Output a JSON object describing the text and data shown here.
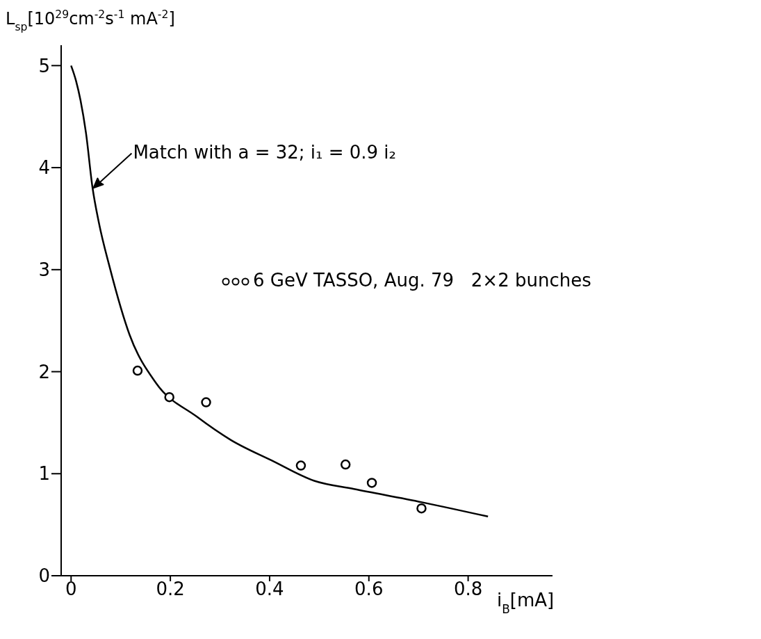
{
  "chart_data": {
    "type": "scatter",
    "xlabel": "i$_{B}$[mA]",
    "ylabel": "L$_{sp}$[10$^{29}$cm$^{-2}$s$^{-1}$ mA$^{-2}$]",
    "xlim": [
      -0.02,
      0.97
    ],
    "xticks": [
      0,
      0.2,
      0.4,
      0.6,
      0.8
    ],
    "ylim": [
      0,
      5.2
    ],
    "yticks": [
      0,
      1,
      2,
      3,
      4,
      5
    ],
    "legend": "right",
    "annotations": [
      {
        "text": "Match with a = 32; i₁ = 0.9 i₂",
        "x": 0.045,
        "y": 3.8
      }
    ],
    "series": [
      {
        "type": "line",
        "color": "#000000",
        "x": [
          0,
          0.01,
          0.019,
          0.03,
          0.043,
          0.056,
          0.078,
          0.118,
          0.171,
          0.253,
          0.322,
          0.404,
          0.49,
          0.57,
          0.707,
          0.84
        ],
        "values": [
          5.0,
          4.85,
          4.66,
          4.34,
          3.81,
          3.46,
          3.02,
          2.36,
          1.89,
          1.56,
          1.33,
          1.13,
          0.93,
          0.85,
          0.72,
          0.58
        ]
      },
      {
        "marker": "circle",
        "name": "6 GeV TASSO, Aug. 79   2×2 bunches",
        "color": "#000000",
        "x": [
          0.134,
          0.198,
          0.272,
          0.463,
          0.553,
          0.606,
          0.706
        ],
        "values": [
          2.01,
          1.75,
          1.7,
          1.08,
          1.09,
          0.91,
          0.66
        ]
      }
    ]
  }
}
